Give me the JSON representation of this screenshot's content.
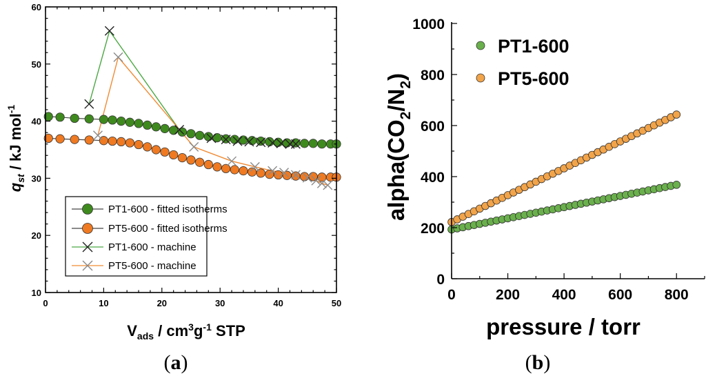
{
  "chart_data": [
    {
      "id": "a",
      "type": "scatter",
      "panel_label": {
        "open": "(",
        "letter": "a",
        "close": ")"
      },
      "xlabel": {
        "main": "V",
        "sub": "ads",
        "rest1": " / cm",
        "sup": "3",
        "rest2": "g",
        "sup2": "-1",
        "rest3": " STP"
      },
      "ylabel": {
        "main": "q",
        "sub": "st",
        "rest": " / kJ mol",
        "sup": "-1"
      },
      "xlim": [
        0,
        50
      ],
      "ylim": [
        10,
        60
      ],
      "xticks": [
        0,
        10,
        20,
        30,
        40,
        50
      ],
      "yticks": [
        10,
        20,
        30,
        40,
        50,
        60
      ],
      "legend_position": "bottom-left",
      "series": [
        {
          "name": "PT1-600 - fitted isotherms",
          "kind": "filled-circle-line",
          "color": "#3f8a1e",
          "line_color": "#444444",
          "x": [
            0.5,
            2.5,
            5.0,
            7.5,
            10.0,
            11.5,
            13.0,
            14.5,
            16.0,
            17.5,
            19.0,
            20.5,
            22.0,
            23.5,
            25.0,
            26.5,
            28.0,
            29.5,
            31.0,
            32.5,
            34.0,
            35.5,
            37.0,
            38.5,
            40.0,
            41.5,
            43.0,
            44.5,
            46.0,
            47.5,
            49.0,
            50.0
          ],
          "y": [
            40.8,
            40.7,
            40.5,
            40.4,
            40.3,
            40.2,
            40.0,
            39.8,
            39.6,
            39.3,
            39.0,
            38.7,
            38.4,
            38.1,
            37.8,
            37.5,
            37.3,
            37.1,
            36.9,
            36.8,
            36.7,
            36.6,
            36.5,
            36.4,
            36.3,
            36.2,
            36.2,
            36.1,
            36.1,
            36.0,
            36.0,
            36.0
          ]
        },
        {
          "name": "PT5-600 - fitted isotherms",
          "kind": "filled-circle-line",
          "color": "#ef7a22",
          "line_color": "#444444",
          "x": [
            0.5,
            2.5,
            5.0,
            7.5,
            10.0,
            11.5,
            13.0,
            14.5,
            16.0,
            17.5,
            19.0,
            20.5,
            22.0,
            23.5,
            25.0,
            26.5,
            28.0,
            29.5,
            31.0,
            32.5,
            34.0,
            35.5,
            37.0,
            38.5,
            40.0,
            41.5,
            43.0,
            44.5,
            46.0,
            47.5,
            49.0,
            50.0
          ],
          "y": [
            37.0,
            36.9,
            36.8,
            36.7,
            36.6,
            36.5,
            36.4,
            36.2,
            35.9,
            35.5,
            35.0,
            34.6,
            34.1,
            33.6,
            33.2,
            32.8,
            32.4,
            32.0,
            31.7,
            31.5,
            31.3,
            31.1,
            30.9,
            30.7,
            30.6,
            30.5,
            30.4,
            30.3,
            30.3,
            30.2,
            30.2,
            30.2
          ]
        },
        {
          "name": "PT1-600 - machine",
          "kind": "x-line",
          "color": "#222222",
          "line_color": "#4ca843",
          "x": [
            7.5,
            11.0,
            23.0,
            28.5,
            31.0,
            33.0,
            35.0,
            37.0,
            39.0,
            40.5,
            42.0,
            43.0
          ],
          "y": [
            43.0,
            55.8,
            38.5,
            37.0,
            36.8,
            36.5,
            36.4,
            36.3,
            36.2,
            36.1,
            36.0,
            36.0
          ]
        },
        {
          "name": "PT5-600 - machine",
          "kind": "x-line",
          "color": "#8a8a8a",
          "line_color": "#f08a33",
          "x": [
            9.0,
            12.5,
            25.5,
            32.0,
            36.0,
            39.0,
            41.0,
            43.0,
            45.0,
            46.5,
            47.5,
            48.5
          ],
          "y": [
            37.5,
            51.2,
            35.5,
            33.0,
            32.0,
            31.3,
            31.0,
            30.6,
            30.1,
            29.6,
            29.1,
            28.8
          ]
        }
      ]
    },
    {
      "id": "b",
      "type": "scatter",
      "panel_label": {
        "open": "(",
        "letter": "b",
        "close": ")"
      },
      "xlabel": {
        "text": "pressure / torr"
      },
      "ylabel": {
        "p1": "alpha(CO",
        "s1": "2",
        "p2": "/N",
        "s2": "2",
        "p3": ")"
      },
      "xlim": [
        0,
        900
      ],
      "ylim": [
        0,
        1000
      ],
      "xticks": [
        0,
        200,
        400,
        600,
        800
      ],
      "yticks": [
        0,
        200,
        400,
        600,
        800,
        1000
      ],
      "legend_position": "top-left",
      "series": [
        {
          "name": "PT1-600",
          "color": "#6ab04c",
          "x_start": 0,
          "x_end": 800,
          "n_points": 41,
          "y_start": 193,
          "y_end": 368
        },
        {
          "name": "PT5-600",
          "color": "#f2a44a",
          "x_start": 0,
          "x_end": 800,
          "n_points": 41,
          "y_start": 222,
          "y_end": 643
        }
      ]
    }
  ]
}
